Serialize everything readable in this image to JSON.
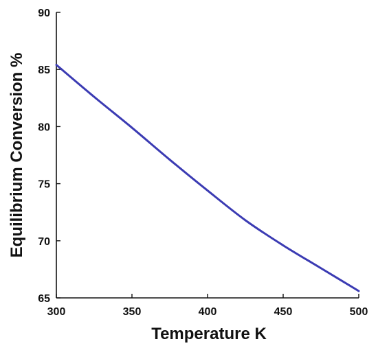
{
  "chart_data": {
    "type": "line",
    "title": "",
    "xlabel": "Temperature K",
    "ylabel": "Equilibrium Conversion %",
    "xlim": [
      300,
      500
    ],
    "ylim": [
      65,
      90
    ],
    "xticks": [
      "300",
      "350",
      "400",
      "450",
      "500"
    ],
    "yticks": [
      "65",
      "70",
      "75",
      "80",
      "85",
      "90"
    ],
    "grid": false,
    "legend": "none",
    "series": [
      {
        "color": "#3b3bb3",
        "x": [
          300,
          325,
          350,
          375,
          400,
          425,
          450,
          475,
          500
        ],
        "y": [
          85.4,
          82.6,
          79.9,
          77.1,
          74.4,
          71.8,
          69.6,
          67.6,
          65.6
        ]
      }
    ]
  }
}
